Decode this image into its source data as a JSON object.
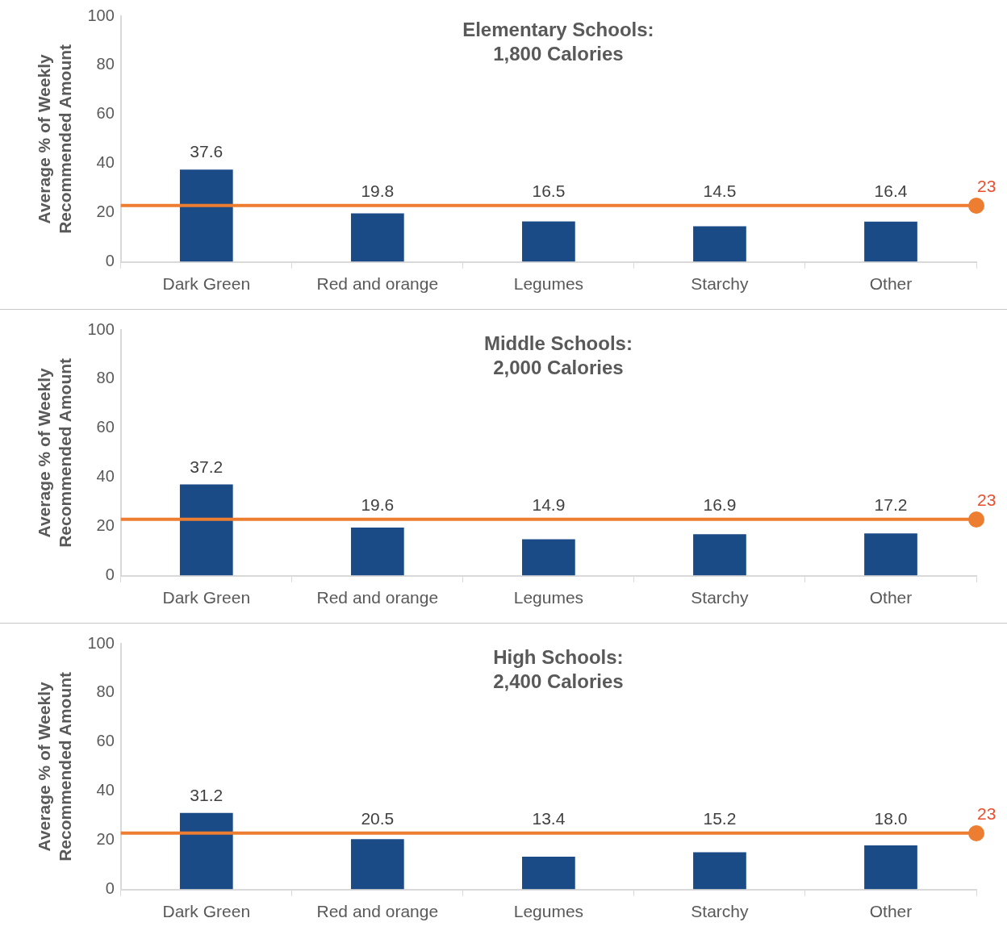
{
  "chart_data": [
    {
      "type": "bar",
      "title": "Elementary Schools:\n1,800 Calories",
      "ylabel": "Average % of Weekly\nRecommended Amount",
      "categories": [
        "Dark Green",
        "Red and orange",
        "Legumes",
        "Starchy",
        "Other"
      ],
      "values": [
        37.6,
        19.8,
        16.5,
        14.5,
        16.4
      ],
      "value_labels": [
        "37.6",
        "19.8",
        "16.5",
        "14.5",
        "16.4"
      ],
      "color": "#1b4b87",
      "ylim": [
        0,
        100
      ],
      "yticks": [
        0,
        20,
        40,
        60,
        80,
        100
      ],
      "grid": false,
      "legend": false,
      "ref_lines": [
        {
          "axis": "y",
          "value": 23,
          "label": "23",
          "color": "#ed7d31"
        }
      ]
    },
    {
      "type": "bar",
      "title": "Middle Schools:\n2,000 Calories",
      "ylabel": "Average % of Weekly\nRecommended Amount",
      "categories": [
        "Dark Green",
        "Red and orange",
        "Legumes",
        "Starchy",
        "Other"
      ],
      "values": [
        37.2,
        19.6,
        14.9,
        16.9,
        17.2
      ],
      "value_labels": [
        "37.2",
        "19.6",
        "14.9",
        "16.9",
        "17.2"
      ],
      "color": "#1b4b87",
      "ylim": [
        0,
        100
      ],
      "yticks": [
        0,
        20,
        40,
        60,
        80,
        100
      ],
      "grid": false,
      "legend": false,
      "ref_lines": [
        {
          "axis": "y",
          "value": 23,
          "label": "23",
          "color": "#ed7d31"
        }
      ]
    },
    {
      "type": "bar",
      "title": "High Schools:\n2,400 Calories",
      "ylabel": "Average % of Weekly\nRecommended Amount",
      "categories": [
        "Dark Green",
        "Red and orange",
        "Legumes",
        "Starchy",
        "Other"
      ],
      "values": [
        31.2,
        20.5,
        13.4,
        15.2,
        18.0
      ],
      "value_labels": [
        "31.2",
        "20.5",
        "13.4",
        "15.2",
        "18.0"
      ],
      "color": "#1b4b87",
      "ylim": [
        0,
        100
      ],
      "yticks": [
        0,
        20,
        40,
        60,
        80,
        100
      ],
      "grid": false,
      "legend": false,
      "ref_lines": [
        {
          "axis": "y",
          "value": 23,
          "label": "23",
          "color": "#ed7d31"
        }
      ]
    }
  ]
}
